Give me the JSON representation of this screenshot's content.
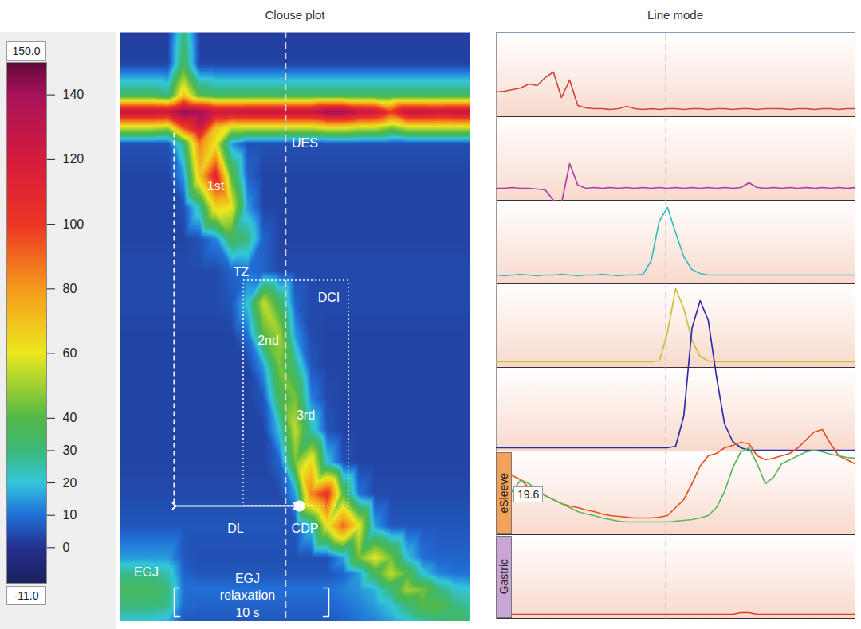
{
  "chart_data": [
    {
      "type": "heatmap",
      "title": "Clouse plot",
      "tick_labels": false,
      "xlim": [
        0,
        22
      ],
      "ylim": [
        0,
        37
      ],
      "x": [
        0,
        1,
        2,
        3,
        4,
        5,
        6,
        7,
        8,
        9,
        10,
        11,
        12,
        13,
        14,
        15,
        16,
        17,
        18,
        19,
        20,
        21,
        22
      ],
      "y": [
        0,
        2,
        4,
        5,
        6,
        7,
        9,
        11,
        13,
        15,
        17,
        19,
        21,
        23,
        25,
        27,
        29,
        31,
        33,
        34,
        35,
        36,
        37
      ],
      "cells": [
        [
          2,
          2,
          2,
          2,
          30,
          2,
          2,
          2,
          2,
          2,
          2,
          2,
          2,
          2,
          2,
          2,
          2,
          2,
          2,
          2,
          2,
          2,
          2
        ],
        [
          3,
          3,
          3,
          3,
          35,
          3,
          3,
          3,
          3,
          3,
          3,
          3,
          3,
          3,
          3,
          3,
          3,
          3,
          3,
          3,
          3,
          3,
          3
        ],
        [
          35,
          35,
          35,
          30,
          70,
          40,
          35,
          35,
          35,
          35,
          35,
          35,
          35,
          35,
          35,
          35,
          35,
          35,
          35,
          35,
          35,
          35,
          35
        ],
        [
          128,
          128,
          128,
          125,
          145,
          142,
          125,
          125,
          128,
          128,
          128,
          128,
          128,
          142,
          142,
          128,
          125,
          100,
          128,
          128,
          125,
          128,
          128
        ],
        [
          55,
          55,
          55,
          50,
          95,
          125,
          70,
          55,
          55,
          55,
          55,
          55,
          55,
          60,
          60,
          55,
          55,
          45,
          55,
          55,
          55,
          55,
          55
        ],
        [
          5,
          5,
          5,
          5,
          30,
          85,
          60,
          15,
          5,
          5,
          5,
          5,
          5,
          5,
          5,
          5,
          5,
          5,
          5,
          5,
          5,
          5,
          5
        ],
        [
          3,
          3,
          3,
          3,
          15,
          70,
          110,
          40,
          8,
          3,
          3,
          3,
          3,
          3,
          3,
          3,
          3,
          3,
          3,
          3,
          3,
          3,
          3
        ],
        [
          3,
          3,
          3,
          3,
          5,
          25,
          65,
          60,
          15,
          3,
          3,
          3,
          3,
          3,
          3,
          3,
          3,
          3,
          3,
          3,
          3,
          3,
          3
        ],
        [
          3,
          3,
          3,
          3,
          3,
          5,
          12,
          35,
          30,
          8,
          3,
          3,
          3,
          3,
          3,
          3,
          3,
          3,
          3,
          3,
          3,
          3,
          3
        ],
        [
          4,
          4,
          4,
          4,
          4,
          4,
          4,
          8,
          10,
          8,
          4,
          4,
          4,
          4,
          4,
          4,
          4,
          4,
          4,
          4,
          4,
          4,
          4
        ],
        [
          4,
          4,
          4,
          4,
          4,
          4,
          4,
          6,
          20,
          55,
          35,
          8,
          4,
          4,
          4,
          4,
          4,
          4,
          4,
          4,
          4,
          4,
          4
        ],
        [
          3,
          3,
          3,
          3,
          3,
          3,
          3,
          3,
          10,
          40,
          50,
          15,
          4,
          3,
          3,
          3,
          3,
          3,
          3,
          3,
          3,
          3,
          3
        ],
        [
          3,
          3,
          3,
          3,
          3,
          3,
          3,
          3,
          3,
          15,
          45,
          30,
          6,
          3,
          3,
          3,
          3,
          3,
          3,
          3,
          3,
          3,
          3
        ],
        [
          3,
          3,
          3,
          3,
          3,
          3,
          3,
          3,
          3,
          6,
          35,
          45,
          12,
          4,
          3,
          3,
          3,
          3,
          3,
          3,
          3,
          3,
          3
        ],
        [
          3,
          3,
          3,
          3,
          3,
          3,
          3,
          3,
          3,
          3,
          20,
          55,
          25,
          6,
          3,
          3,
          3,
          3,
          3,
          3,
          3,
          3,
          3
        ],
        [
          3,
          3,
          3,
          3,
          3,
          3,
          3,
          3,
          3,
          3,
          8,
          45,
          65,
          20,
          5,
          3,
          3,
          3,
          3,
          3,
          3,
          3,
          3
        ],
        [
          4,
          4,
          4,
          4,
          4,
          4,
          4,
          4,
          4,
          4,
          4,
          15,
          85,
          105,
          40,
          10,
          4,
          4,
          4,
          4,
          4,
          4,
          4
        ],
        [
          6,
          6,
          6,
          6,
          6,
          6,
          6,
          6,
          6,
          6,
          6,
          6,
          20,
          60,
          90,
          60,
          15,
          6,
          6,
          6,
          6,
          6,
          6
        ],
        [
          15,
          15,
          15,
          15,
          6,
          5,
          5,
          5,
          5,
          5,
          5,
          5,
          5,
          5,
          15,
          45,
          60,
          45,
          20,
          10,
          8,
          8,
          8
        ],
        [
          28,
          28,
          28,
          25,
          8,
          6,
          6,
          6,
          6,
          6,
          6,
          6,
          6,
          6,
          8,
          15,
          35,
          55,
          40,
          20,
          12,
          10,
          10
        ],
        [
          35,
          35,
          35,
          30,
          10,
          10,
          10,
          10,
          10,
          10,
          10,
          10,
          10,
          10,
          12,
          14,
          18,
          30,
          50,
          45,
          30,
          22,
          20
        ],
        [
          30,
          30,
          30,
          28,
          9,
          8,
          8,
          8,
          8,
          8,
          8,
          8,
          8,
          8,
          10,
          12,
          15,
          20,
          30,
          40,
          40,
          30,
          25
        ],
        [
          20,
          20,
          20,
          18,
          6,
          6,
          6,
          6,
          6,
          6,
          6,
          6,
          6,
          6,
          8,
          10,
          12,
          15,
          20,
          25,
          30,
          35,
          30
        ]
      ],
      "colorbar": {
        "range": [
          -11,
          150
        ],
        "range_labels": [
          "-11.0",
          "150.0"
        ],
        "ticks": [
          0,
          10,
          20,
          30,
          40,
          60,
          80,
          100,
          120,
          140
        ],
        "colors": [
          "#1b1f5e",
          "#23318f",
          "#2170d8",
          "#33c6dc",
          "#3cb878",
          "#52b848",
          "#ece81e",
          "#f59a1c",
          "#ec3424",
          "#d41c3c",
          "#a8125c",
          "#5e0838"
        ]
      },
      "cursor": 10.4,
      "annotations": [
        "UES",
        "1st",
        "TZ",
        "DCI",
        "2nd",
        "3rd",
        "DL",
        "CDP",
        "EGJ",
        "EGJ relaxation",
        "10 s"
      ]
    },
    {
      "type": "line",
      "title": "Line mode",
      "tick_labels": false,
      "xlim": [
        0,
        22
      ],
      "cursor": 10.4,
      "x": [
        0,
        0.5,
        1,
        1.5,
        2,
        2.5,
        3,
        3.5,
        4,
        4.5,
        5,
        5.5,
        6,
        6.5,
        7,
        7.5,
        8,
        8.5,
        9,
        9.5,
        10,
        10.5,
        11,
        11.5,
        12,
        12.5,
        13,
        13.5,
        14,
        14.5,
        15,
        15.5,
        16,
        16.5,
        17,
        17.5,
        18,
        18.5,
        19,
        19.5,
        20,
        20.5,
        21,
        21.5,
        22
      ],
      "panels": [
        {
          "series": [
            {
              "color": "#d0453a",
              "ylim": [
                -5,
                100
              ],
              "values": [
                27,
                28,
                30,
                32,
                37,
                35,
                45,
                52,
                20,
                42,
                10,
                7,
                6,
                6,
                5,
                6,
                9,
                6,
                5,
                6,
                5,
                6,
                6,
                5,
                6,
                6,
                5,
                6,
                6,
                5,
                6,
                6,
                5,
                6,
                6,
                6,
                5,
                6,
                6,
                5,
                6,
                6,
                5,
                6,
                6
              ]
            }
          ]
        },
        {
          "series": [
            {
              "color": "#b03aa8",
              "ylim": [
                -5,
                100
              ],
              "values": [
                11,
                11,
                12,
                11,
                11,
                10,
                9,
                -4,
                -8,
                42,
                15,
                11,
                12,
                11,
                12,
                11,
                12,
                11,
                12,
                11,
                12,
                11,
                12,
                11,
                12,
                11,
                12,
                11,
                12,
                11,
                12,
                18,
                12,
                11,
                12,
                11,
                12,
                11,
                12,
                11,
                12,
                11,
                12,
                11,
                12
              ]
            }
          ]
        },
        {
          "series": [
            {
              "color": "#3bbcc4",
              "ylim": [
                -5,
                100
              ],
              "values": [
                7,
                6,
                7,
                8,
                7,
                6,
                7,
                7,
                8,
                7,
                6,
                7,
                7,
                8,
                7,
                6,
                7,
                7,
                8,
                25,
                75,
                92,
                60,
                30,
                14,
                9,
                7,
                7,
                7,
                7,
                7,
                7,
                7,
                7,
                7,
                7,
                7,
                7,
                7,
                7,
                7,
                7,
                7,
                7,
                7
              ]
            }
          ]
        },
        {
          "series": [
            {
              "color": "#c8c23a",
              "ylim": [
                -5,
                100
              ],
              "values": [
                3,
                3,
                3,
                3,
                3,
                3,
                3,
                3,
                3,
                3,
                3,
                3,
                3,
                3,
                3,
                3,
                3,
                3,
                3,
                3,
                4,
                40,
                95,
                70,
                30,
                10,
                4,
                3,
                3,
                3,
                3,
                3,
                3,
                3,
                3,
                3,
                3,
                3,
                3,
                3,
                3,
                3,
                3,
                3,
                3
              ]
            }
          ]
        },
        {
          "series": [
            {
              "color": "#2c2ca8",
              "ylim": [
                -5,
                190
              ],
              "values": [
                0,
                0,
                0,
                0,
                0,
                0,
                0,
                0,
                0,
                0,
                0,
                0,
                0,
                0,
                0,
                0,
                0,
                0,
                0,
                0,
                0,
                0,
                2,
                40,
                150,
                185,
                160,
                90,
                30,
                8,
                0,
                -3,
                -3,
                -3,
                -3,
                -3,
                -3,
                -3,
                -3,
                -3,
                -3,
                -3,
                -3,
                -3,
                -3
              ]
            }
          ]
        },
        {
          "label": "eSleeve",
          "color": "#f4a259",
          "readout": 19.6,
          "series": [
            {
              "color": "#e8501e",
              "ylim": [
                -5,
                135
              ],
              "values": [
                75,
                80,
                70,
                65,
                55,
                52,
                45,
                40,
                35,
                32,
                30,
                27,
                25,
                22,
                20,
                19,
                18,
                17,
                17,
                17,
                18,
                20,
                30,
                40,
                60,
                82,
                95,
                98,
                105,
                108,
                112,
                110,
                95,
                90,
                92,
                95,
                98,
                105,
                115,
                125,
                128,
                110,
                95,
                90,
                85
              ]
            },
            {
              "color": "#5cb85c",
              "ylim": [
                -5,
                135
              ],
              "values": [
                75,
                70,
                50,
                65,
                60,
                52,
                45,
                40,
                35,
                30,
                25,
                22,
                20,
                17,
                15,
                13,
                12,
                12,
                12,
                12,
                12,
                12,
                13,
                14,
                15,
                17,
                20,
                30,
                50,
                80,
                100,
                105,
                85,
                60,
                68,
                85,
                90,
                95,
                100,
                102,
                100,
                97,
                95,
                93,
                92
              ]
            }
          ]
        },
        {
          "label": "Gastric",
          "color": "#c9a6d6",
          "series": [
            {
              "color": "#d8402a",
              "ylim": [
                -5,
                100
              ],
              "values": [
                1,
                1,
                1,
                1,
                1,
                1,
                1,
                1,
                1,
                1,
                1,
                1,
                1,
                1,
                1,
                1,
                1,
                1,
                1,
                1,
                1,
                1,
                1,
                1,
                1,
                1,
                1,
                1,
                1,
                1,
                3,
                3,
                1,
                1,
                1,
                1,
                1,
                1,
                1,
                1,
                1,
                1,
                1,
                1,
                1
              ]
            }
          ]
        }
      ]
    }
  ]
}
